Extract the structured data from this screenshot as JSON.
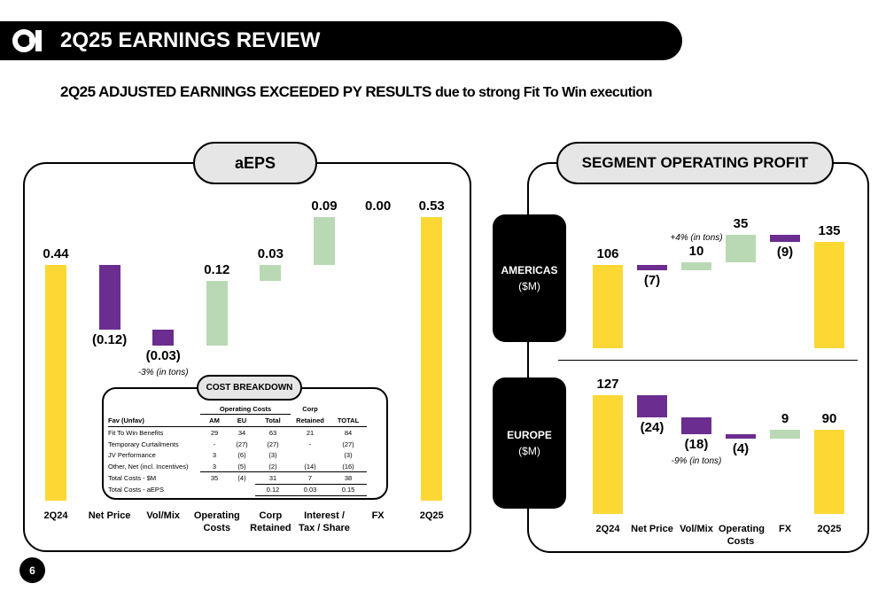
{
  "header": {
    "title": "2Q25 EARNINGS REVIEW"
  },
  "headline": {
    "emphasis": "2Q25 ADJUSTED EARNINGS EXCEEDED PY RESULTS",
    "text": "due to strong Fit To Win execution"
  },
  "chart_data": [
    {
      "type": "waterfall",
      "title": "aEPS",
      "categories": [
        "2Q24",
        "Net Price",
        "Vol/Mix",
        "Operating Costs",
        "Corp Retained",
        "Interest / Tax / Share",
        "FX",
        "2Q25"
      ],
      "measures": [
        "total",
        "relative",
        "relative",
        "relative",
        "relative",
        "relative",
        "relative",
        "total"
      ],
      "values": [
        0.44,
        -0.12,
        -0.03,
        0.12,
        0.03,
        0.09,
        0,
        0.53
      ],
      "value_labels": [
        "0.44",
        "(0.12)",
        "(0.03)",
        "0.12",
        "0.03",
        "0.09",
        "0.00",
        "0.53"
      ],
      "annotations": [
        {
          "category": "Vol/Mix",
          "text": "-3% (in tons)"
        }
      ],
      "colors": {
        "total": "#fdd835",
        "increase": "#b9d9b4",
        "decrease": "#6b2d8f"
      }
    },
    {
      "type": "waterfall",
      "title": "SEGMENT OPERATING PROFIT",
      "categories": [
        "2Q24",
        "Net Price",
        "Vol/Mix",
        "Operating Costs",
        "FX",
        "2Q25"
      ],
      "measures": [
        "total",
        "relative",
        "relative",
        "relative",
        "relative",
        "total"
      ],
      "colors": {
        "total": "#fdd835",
        "increase": "#b9d9b4",
        "decrease": "#6b2d8f"
      },
      "panels": [
        {
          "name": "AMERICAS",
          "unit": "($M)",
          "values": [
            106,
            -7,
            10,
            35,
            -9,
            135
          ],
          "value_labels": [
            "106",
            "(7)",
            "10",
            "35",
            "(9)",
            "135"
          ],
          "annotations": [
            {
              "category": "Vol/Mix",
              "text": "+4% (in tons)"
            }
          ]
        },
        {
          "name": "EUROPE",
          "unit": "($M)",
          "values": [
            127,
            -24,
            -18,
            -4,
            9,
            90
          ],
          "value_labels": [
            "127",
            "(24)",
            "(18)",
            "(4)",
            "9",
            "90"
          ],
          "annotations": [
            {
              "category": "Vol/Mix",
              "text": "-9% (in tons)"
            }
          ]
        }
      ]
    }
  ],
  "cost_breakdown": {
    "title": "COST BREAKDOWN",
    "group_headers": {
      "operating_costs": "Operating Costs",
      "corp": "Corp"
    },
    "columns": [
      "Fav (Unfav)",
      "AM",
      "EU",
      "Total",
      "Retained",
      "TOTAL"
    ],
    "rows": [
      [
        "Fit To Win Benefits",
        "29",
        "34",
        "63",
        "21",
        "84"
      ],
      [
        "Temporary Curtailments",
        "-",
        "(27)",
        "(27)",
        "-",
        "(27)"
      ],
      [
        "JV Performance",
        "3",
        "(6)",
        "(3)",
        null,
        "(3)"
      ],
      [
        "Other, Net (incl. Incentives)",
        "3",
        "(5)",
        "(2)",
        "(14)",
        "(16)"
      ],
      [
        "Total Costs - $M",
        "35",
        "(4)",
        "31",
        "7",
        "38"
      ],
      [
        "Total Costs - aEPS",
        null,
        null,
        "0.12",
        "0.03",
        "0.15"
      ]
    ]
  },
  "page_number": "6"
}
